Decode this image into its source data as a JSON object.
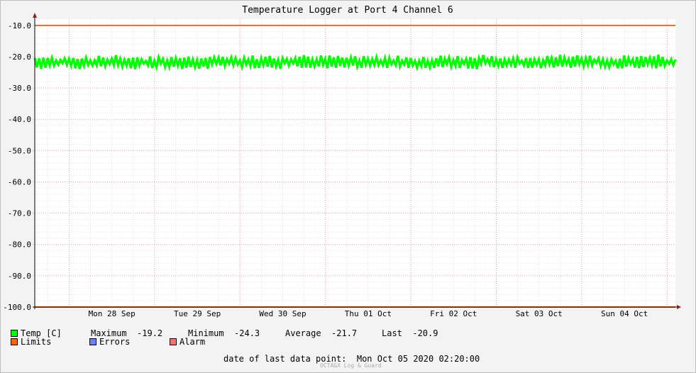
{
  "chart_data": {
    "type": "line",
    "title": "Temperature Logger at Port 4 Channel 6",
    "ylim": [
      -100,
      -8
    ],
    "yticks": [
      "-10.0",
      "-20.0",
      "-30.0",
      "-40.0",
      "-50.0",
      "-60.0",
      "-70.0",
      "-80.0",
      "-90.0",
      "-100.0"
    ],
    "ytick_values": [
      -10,
      -20,
      -30,
      -40,
      -50,
      -60,
      -70,
      -80,
      -90,
      -100
    ],
    "xticks": [
      "Mon 28 Sep",
      "Tue 29 Sep",
      "Wed 30 Sep",
      "Thu 01 Oct",
      "Fri 02 Oct",
      "Sat 03 Oct",
      "Sun 04 Oct"
    ],
    "xlim": [
      "2020-09-27T14:20",
      "2020-10-05T02:20"
    ],
    "grid": true,
    "series": [
      {
        "name": "Temp [C]",
        "color": "#00ff00",
        "range": [
          -24.3,
          -19.2
        ],
        "average": -21.7,
        "last": -20.9
      },
      {
        "name": "Limits",
        "color": "#ff6600",
        "values": [
          -10,
          -100
        ]
      }
    ]
  },
  "legend": {
    "temp_label": "Temp [C]",
    "maximum_label": "Maximum",
    "maximum_value": "-19.2",
    "minimum_label": "Minimum",
    "minimum_value": "-24.3",
    "average_label": "Average",
    "average_value": "-21.7",
    "last_label": "Last",
    "last_value": "-20.9",
    "limits_label": "Limits",
    "errors_label": "Errors",
    "alarm_label": "Alarm",
    "colors": {
      "temp": "#00ff00",
      "limits": "#ff6600",
      "errors": "#6f7fff",
      "alarm": "#ff7373"
    }
  },
  "footer": {
    "last_point_label": "date of last data point:",
    "last_point_value": "Mon Oct 05 2020 02:20:00",
    "credit": "OCTA&X Log & Guard"
  }
}
